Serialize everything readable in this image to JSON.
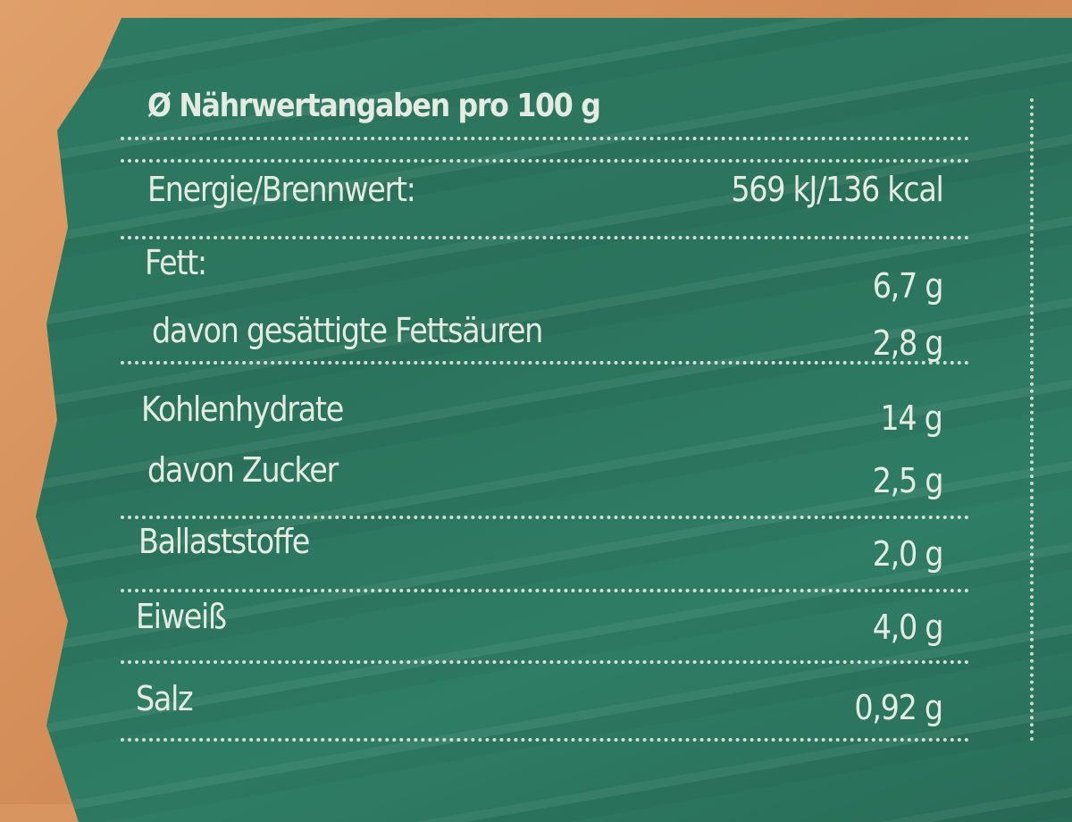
{
  "label": {
    "title": "Ø Nährwertangaben pro 100 g",
    "rows": [
      {
        "name": "Energie/Brennwert:",
        "value": "569 kJ/136 kcal"
      },
      {
        "name": "Fett:",
        "value": "6,7 g"
      },
      {
        "name": "davon gesättigte Fettsäuren",
        "value": "2,8 g"
      },
      {
        "name": "Kohlenhydrate",
        "value": "14 g"
      },
      {
        "name": "davon Zucker",
        "value": "2,5 g"
      },
      {
        "name": "Ballaststoffe",
        "value": "2,0 g"
      },
      {
        "name": "Eiweiß",
        "value": "4,0 g"
      },
      {
        "name": "Salz",
        "value": "0,92 g"
      }
    ]
  },
  "colors": {
    "panel": "#2e7a62",
    "background": "#d9955f",
    "text": "#e4ebe3"
  }
}
